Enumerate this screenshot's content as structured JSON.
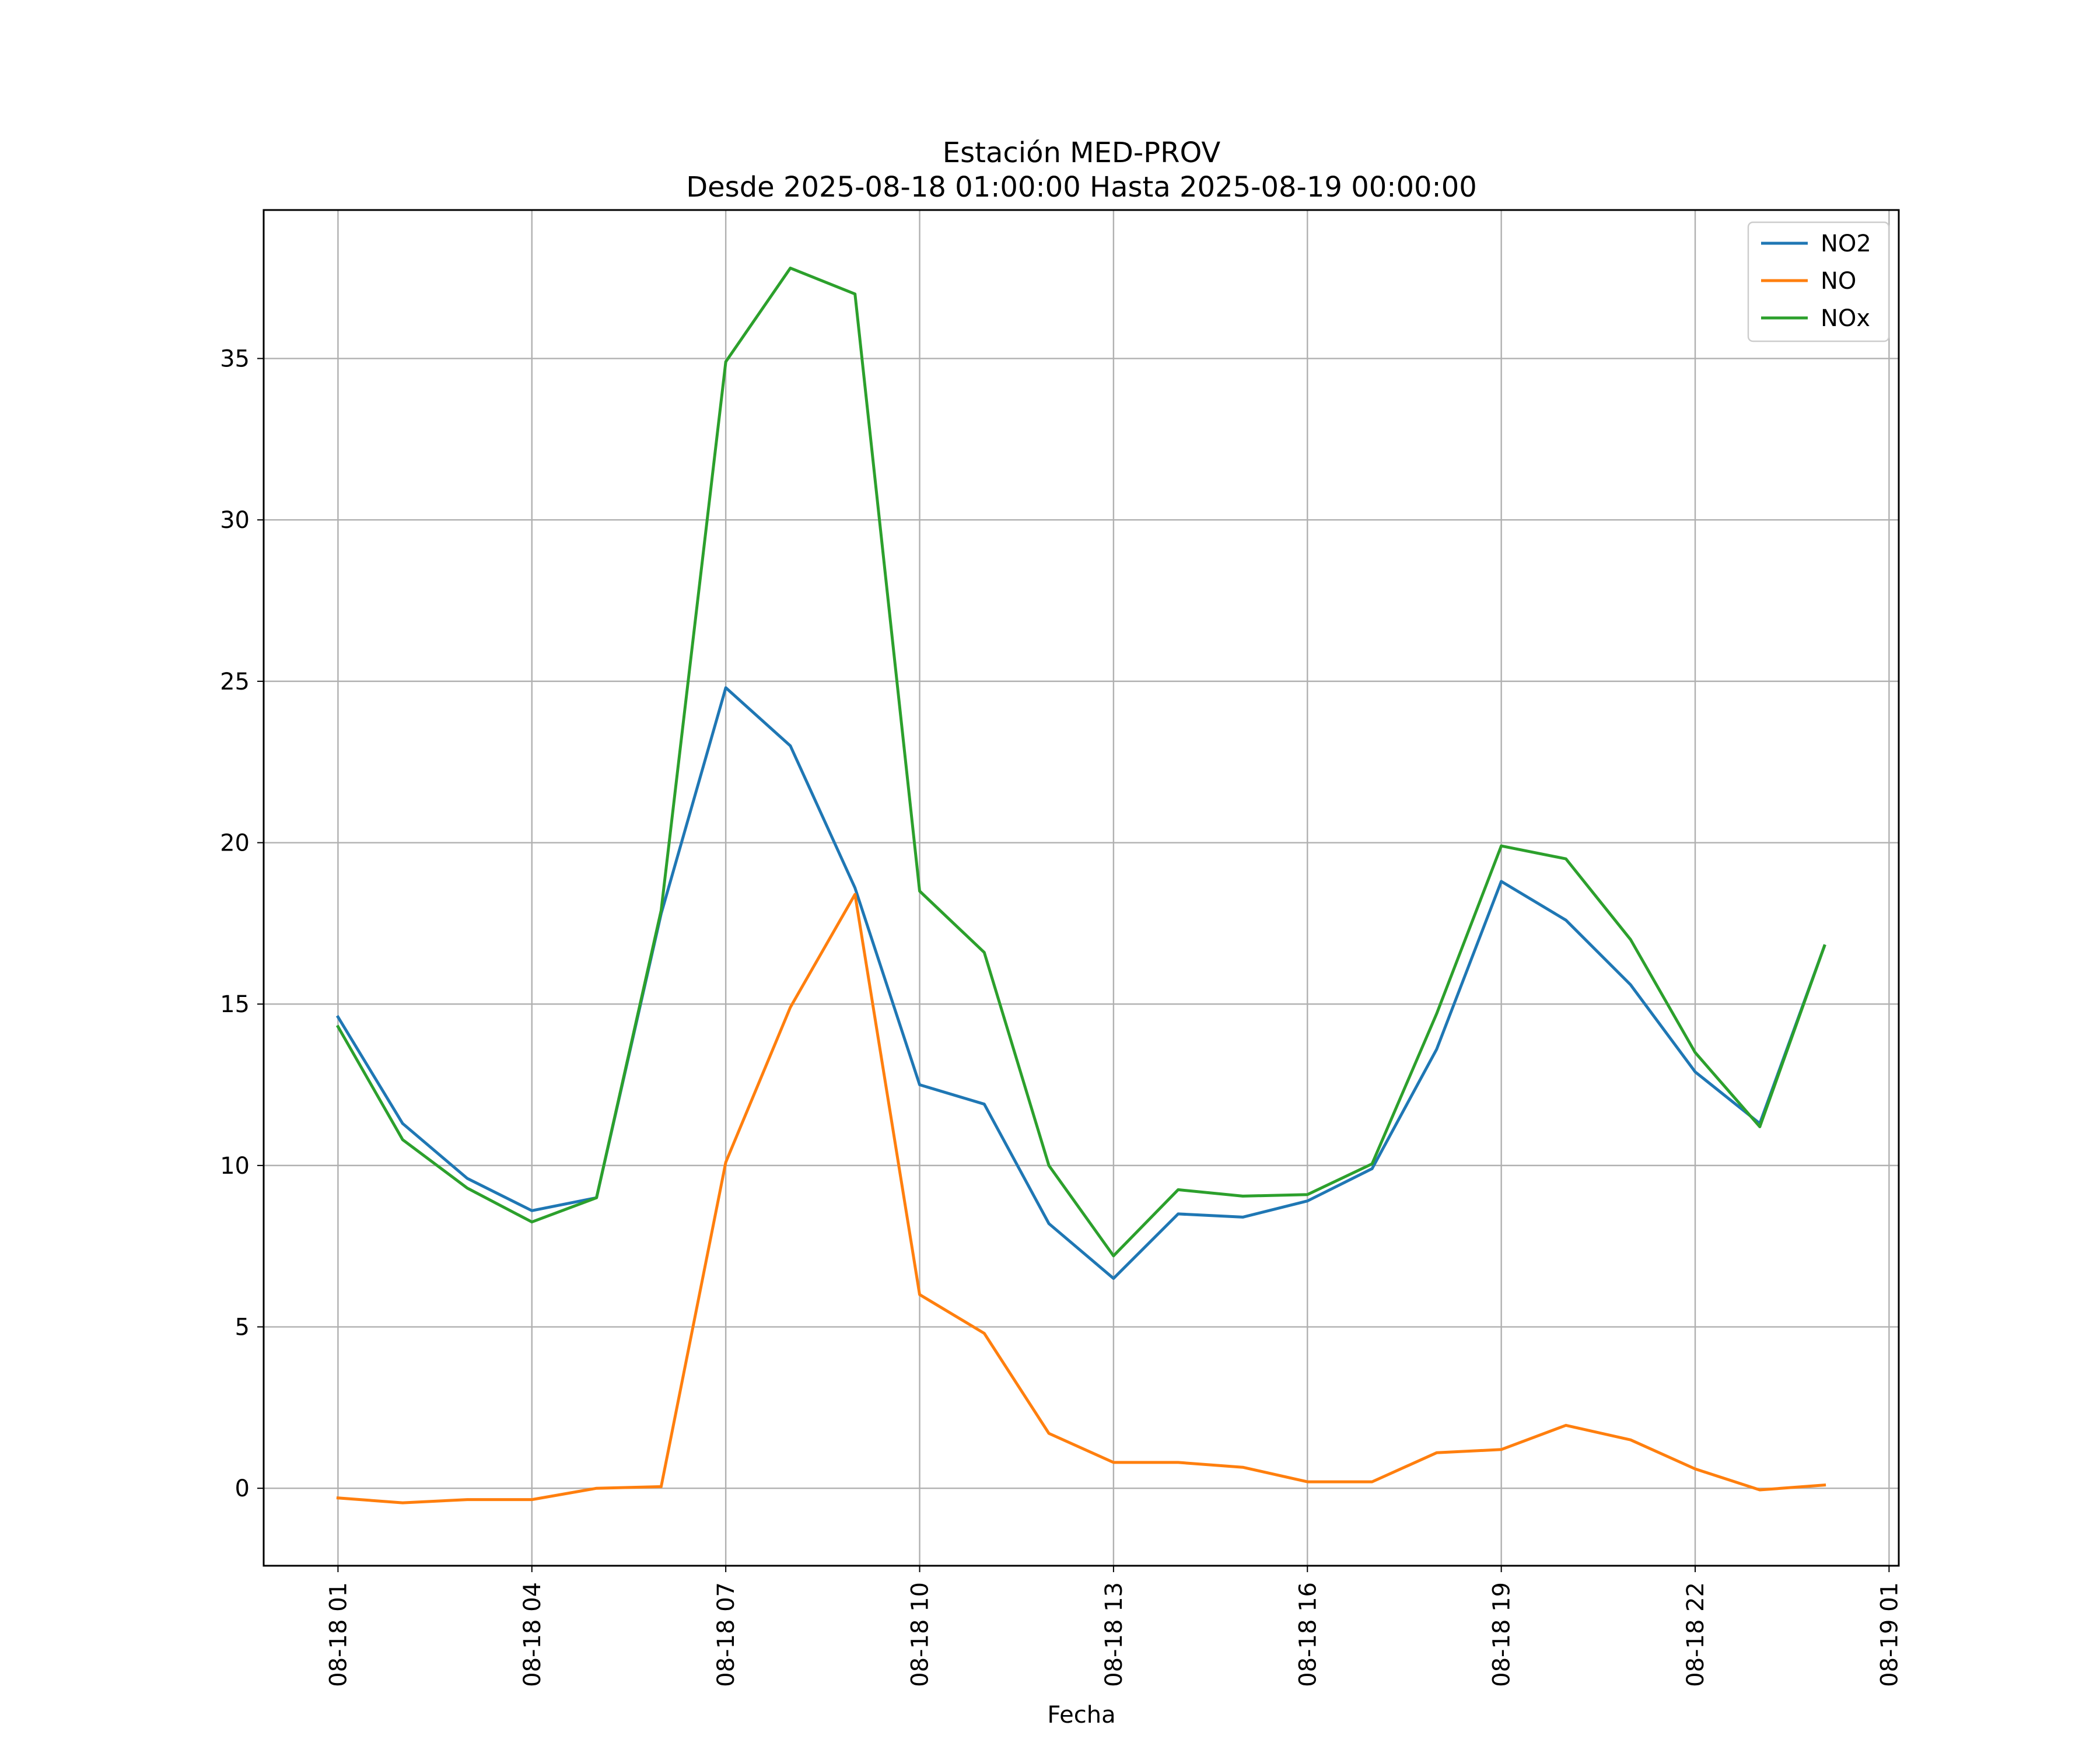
{
  "chart_data": {
    "type": "line",
    "title": "Estación MED-PROV",
    "subtitle": "Desde 2025-08-18 01:00:00 Hasta 2025-08-19 00:00:00",
    "xlabel": "Fecha",
    "ylabel": "",
    "x": [
      "2025-08-18 01:00",
      "2025-08-18 02:00",
      "2025-08-18 03:00",
      "2025-08-18 04:00",
      "2025-08-18 05:00",
      "2025-08-18 06:00",
      "2025-08-18 07:00",
      "2025-08-18 08:00",
      "2025-08-18 09:00",
      "2025-08-18 10:00",
      "2025-08-18 11:00",
      "2025-08-18 12:00",
      "2025-08-18 13:00",
      "2025-08-18 14:00",
      "2025-08-18 15:00",
      "2025-08-18 16:00",
      "2025-08-18 17:00",
      "2025-08-18 18:00",
      "2025-08-18 19:00",
      "2025-08-18 20:00",
      "2025-08-18 21:00",
      "2025-08-18 22:00",
      "2025-08-18 23:00",
      "2025-08-19 00:00"
    ],
    "series": [
      {
        "name": "NO2",
        "color": "#1f77b4",
        "values": [
          14.6,
          11.3,
          9.6,
          8.6,
          9.0,
          17.8,
          24.8,
          23.0,
          18.6,
          12.5,
          11.9,
          8.2,
          6.5,
          8.5,
          8.4,
          8.9,
          9.9,
          13.6,
          18.8,
          17.6,
          15.6,
          12.9,
          11.3,
          16.8
        ]
      },
      {
        "name": "NO",
        "color": "#ff7f0e",
        "values": [
          -0.3,
          -0.45,
          -0.35,
          -0.35,
          0.0,
          0.05,
          10.1,
          14.9,
          18.4,
          6.0,
          4.8,
          1.7,
          0.8,
          0.8,
          0.65,
          0.2,
          0.2,
          1.1,
          1.2,
          1.95,
          1.5,
          0.6,
          -0.05,
          0.1
        ]
      },
      {
        "name": "NOx",
        "color": "#2ca02c",
        "values": [
          14.3,
          10.8,
          9.3,
          8.25,
          9.0,
          17.9,
          34.9,
          37.8,
          37.0,
          18.5,
          16.6,
          10.0,
          7.2,
          9.25,
          9.05,
          9.1,
          10.05,
          14.7,
          19.9,
          19.5,
          17.0,
          13.5,
          11.2,
          16.8
        ]
      }
    ],
    "xticks": [
      "08-18 01",
      "08-18 04",
      "08-18 07",
      "08-18 10",
      "08-18 13",
      "08-18 16",
      "08-18 19",
      "08-18 22",
      "08-19 01"
    ],
    "xlim": [
      "2025-08-17 23:51",
      "2025-08-19 01:09"
    ],
    "yticks": [
      0,
      5,
      10,
      15,
      20,
      25,
      30,
      35
    ],
    "ylim": [
      -2.4,
      39.6
    ],
    "grid": true,
    "legend_position": "top-right"
  }
}
